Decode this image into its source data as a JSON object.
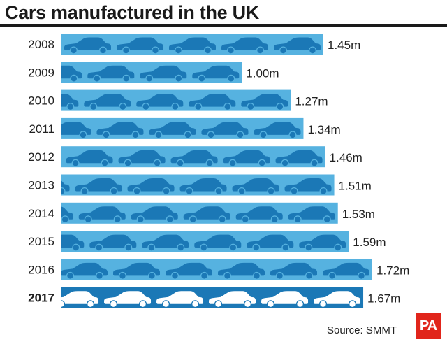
{
  "colors": {
    "bar": "#56b2e0",
    "car": "#1b78b6",
    "bar_highlight": "#1b78b6",
    "car_highlight": "#ffffff",
    "text": "#1a1a1a",
    "logo": "#e1251b"
  },
  "chart_data": {
    "type": "bar",
    "orientation": "horizontal",
    "title": "Cars manufactured in the UK",
    "categories": [
      "2008",
      "2009",
      "2010",
      "2011",
      "2012",
      "2013",
      "2014",
      "2015",
      "2016",
      "2017"
    ],
    "values": [
      1.45,
      1.0,
      1.27,
      1.34,
      1.46,
      1.51,
      1.53,
      1.59,
      1.72,
      1.67
    ],
    "value_labels": [
      "1.45m",
      "1.00m",
      "1.27m",
      "1.34m",
      "1.46m",
      "1.51m",
      "1.53m",
      "1.59m",
      "1.72m",
      "1.67m"
    ],
    "highlight_category": "2017",
    "xlim": [
      0,
      1.72
    ],
    "grid": false,
    "legend": "none",
    "mark_icon": "car-icon"
  },
  "footer": {
    "source": "Source: SMMT",
    "logo_text": "PA"
  }
}
